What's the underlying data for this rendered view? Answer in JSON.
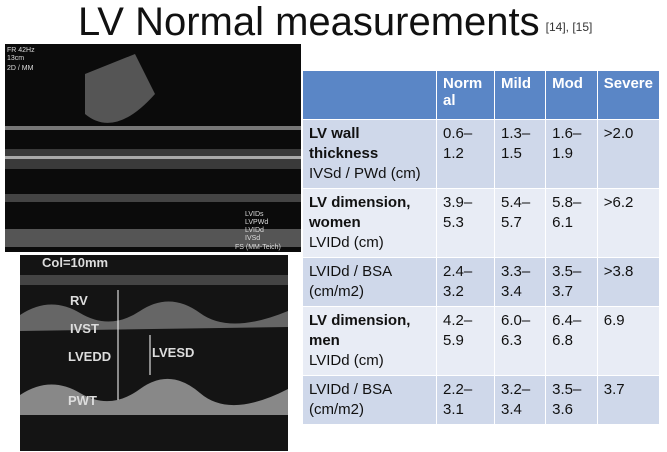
{
  "title": "LV Normal measurements",
  "refs": "[14], [15]",
  "top_image": {
    "labels": [
      "FR 42Hz",
      "13cm",
      "2D / MM",
      "LVIDs",
      "LVPWd",
      "LVIDd",
      "IVSd",
      "FS (MM-Teich)"
    ]
  },
  "bottom_image": {
    "labels": [
      "Col=10mm",
      "RV",
      "IVST",
      "LVEDD",
      "LVESD",
      "PWT"
    ]
  },
  "table": {
    "header": [
      "Normal",
      "Mild",
      "Mod",
      "Severe"
    ],
    "rows": [
      {
        "bold": "LV wall thickness",
        "sub": "IVSd / PWd (cm)",
        "cells": [
          "0.6–1.2",
          "1.3–1.5",
          "1.6–1.9",
          ">2.0"
        ]
      },
      {
        "bold": "LV dimension, women",
        "sub": "LVIDd (cm)",
        "cells": [
          "3.9–5.3",
          "5.4–5.7",
          "5.8–6.1",
          ">6.2"
        ]
      },
      {
        "sub": "LVIDd / BSA (cm/m2)",
        "cells": [
          "2.4–3.2",
          "3.3–3.4",
          "3.5–3.7",
          ">3.8"
        ]
      },
      {
        "bold": "LV dimension, men",
        "sub": "LVIDd (cm)",
        "cells": [
          "4.2–5.9",
          "6.0–6.3",
          "6.4–6.8",
          "6.9"
        ]
      },
      {
        "sub": "LVIDd / BSA (cm/m2)",
        "cells": [
          "2.2–3.1",
          "3.2–3.4",
          "3.5–3.6",
          "3.7"
        ]
      }
    ]
  }
}
